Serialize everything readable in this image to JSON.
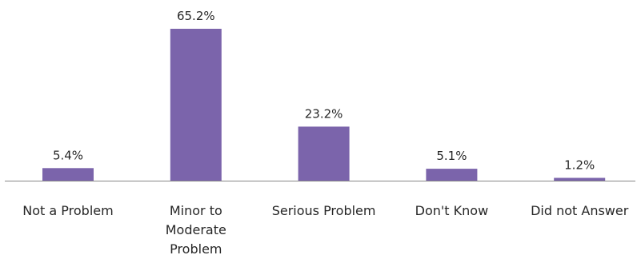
{
  "chart_data": {
    "type": "bar",
    "categories": [
      [
        "Not a Problem"
      ],
      [
        "Minor to",
        "Moderate",
        "Problem"
      ],
      [
        "Serious Problem"
      ],
      [
        "Don't Know"
      ],
      [
        "Did not Answer"
      ]
    ],
    "values": [
      5.4,
      65.2,
      23.2,
      5.1,
      1.2
    ],
    "value_labels": [
      "5.4%",
      "65.2%",
      "23.2%",
      "5.1%",
      "1.2%"
    ],
    "title": "",
    "xlabel": "",
    "ylabel": "",
    "ylim": [
      0,
      65.2
    ],
    "grid": false,
    "legend": "none",
    "bar_color": "#7b64ab",
    "axis_color": "#868686"
  }
}
